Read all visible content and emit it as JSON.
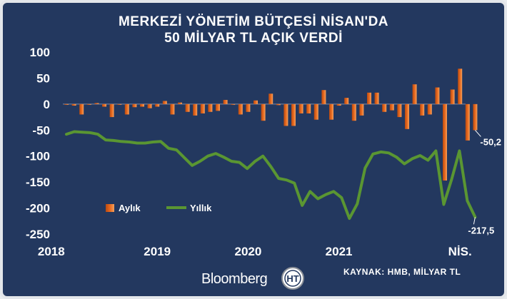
{
  "chart_data": {
    "type": "bar+line",
    "title_lines": [
      "MERKEZİ YÖNETİM BÜTÇESİ NİSAN'DA",
      "50 MİLYAR TL AÇIK VERDİ"
    ],
    "ylim": [
      -250,
      100
    ],
    "yticks": [
      "100",
      "50",
      "0",
      "-50",
      "-100",
      "-150",
      "-200",
      "-250"
    ],
    "xticks": [
      {
        "label": "2018",
        "index": -2
      },
      {
        "label": "2019",
        "index": 12
      },
      {
        "label": "2020",
        "index": 24
      },
      {
        "label": "2021",
        "index": 36
      },
      {
        "label": "NİS.",
        "index": 52
      }
    ],
    "grid": false,
    "legend_position": "lower-left",
    "series": [
      {
        "name": "Aylık",
        "kind": "bar",
        "color": "#e8691e",
        "values": [
          -1,
          -3,
          -20,
          -1,
          2,
          -5,
          -25,
          0,
          -20,
          -6,
          -5,
          -8,
          -5,
          6,
          -20,
          3,
          -15,
          -22,
          -18,
          -15,
          -13,
          8,
          -1,
          -20,
          -15,
          7,
          -32,
          20,
          -2,
          -42,
          -42,
          -18,
          -18,
          -30,
          27,
          -30,
          -3,
          12,
          -32,
          -22,
          22,
          22,
          -15,
          -12,
          -25,
          -48,
          38,
          -22,
          -20,
          32,
          -147,
          28,
          68,
          -70,
          -50.2
        ]
      },
      {
        "name": "Yıllık",
        "kind": "line",
        "color": "#5a9632",
        "values": [
          -58,
          -53,
          -54,
          -55,
          -58,
          -69,
          -70,
          -72,
          -73,
          -75,
          -75,
          -73,
          -72,
          -85,
          -88,
          -103,
          -118,
          -110,
          -100,
          -95,
          -102,
          -110,
          -112,
          -124,
          -110,
          -100,
          -120,
          -143,
          -146,
          -152,
          -195,
          -168,
          -182,
          -174,
          -168,
          -180,
          -220,
          -192,
          -123,
          -96,
          -92,
          -94,
          -102,
          -115,
          -105,
          -99,
          -108,
          -90,
          -193,
          -145,
          -90,
          -186,
          -217.5
        ]
      }
    ],
    "annotations": [
      {
        "series": "Aylık",
        "text": "-50,2"
      },
      {
        "series": "Yıllık",
        "text": "-217,5"
      }
    ]
  },
  "source": "KAYNAK: HMB, MİLYAR TL",
  "brand": {
    "name": "Bloomberg",
    "logo_letters": "HT",
    "bar_color": "#e8691e",
    "line_color": "#5a9632"
  }
}
